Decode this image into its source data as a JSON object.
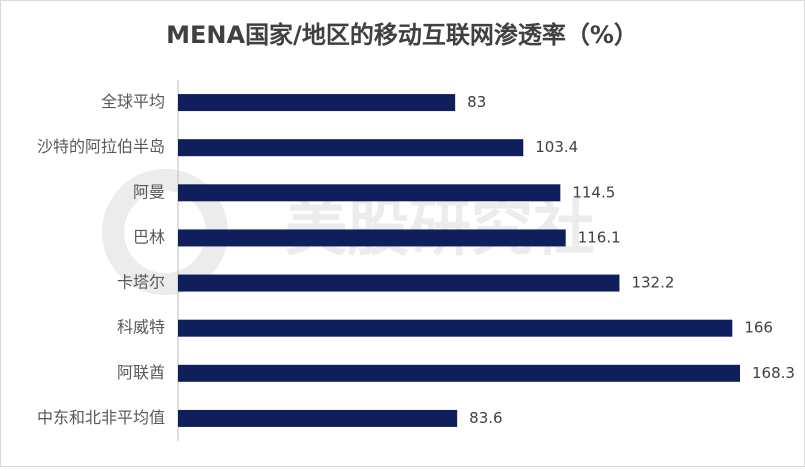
{
  "chart_data": {
    "type": "barh",
    "title": "MENA国家/地区的移动互联网渗透率（%）",
    "categories": [
      "全球平均",
      "沙特的阿拉伯半岛",
      "阿曼",
      "巴林",
      "卡塔尔",
      "科威特",
      "阿联酋",
      "中东和北非平均值"
    ],
    "values": [
      83,
      103.4,
      114.5,
      116.1,
      132.2,
      166,
      168.3,
      83.6
    ],
    "color": "#0e1f5b"
  },
  "watermark": "美股研究社"
}
